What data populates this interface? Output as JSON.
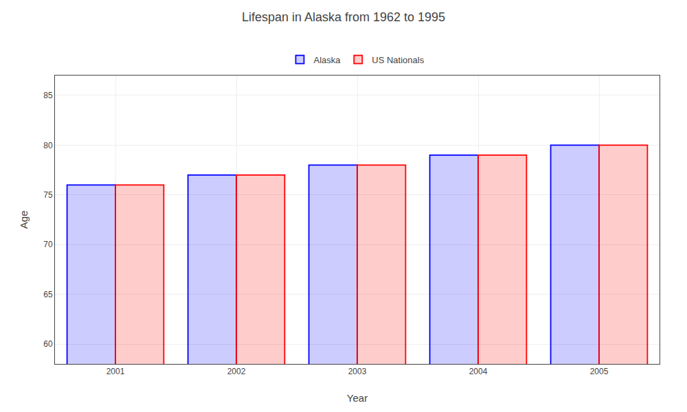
{
  "chart_data": {
    "type": "bar",
    "title": "Lifespan in Alaska from 1962 to 1995",
    "xlabel": "Year",
    "ylabel": "Age",
    "categories": [
      "2001",
      "2002",
      "2003",
      "2004",
      "2005"
    ],
    "series": [
      {
        "name": "Alaska",
        "color": "#0000ff",
        "values": [
          76,
          77,
          78,
          79,
          80
        ]
      },
      {
        "name": "US Nationals",
        "color": "#ff0000",
        "values": [
          76,
          77,
          78,
          79,
          80
        ]
      }
    ],
    "ylim": [
      58,
      87
    ],
    "yticks": [
      60,
      65,
      70,
      75,
      80,
      85
    ],
    "grid": true,
    "legend": "top"
  }
}
